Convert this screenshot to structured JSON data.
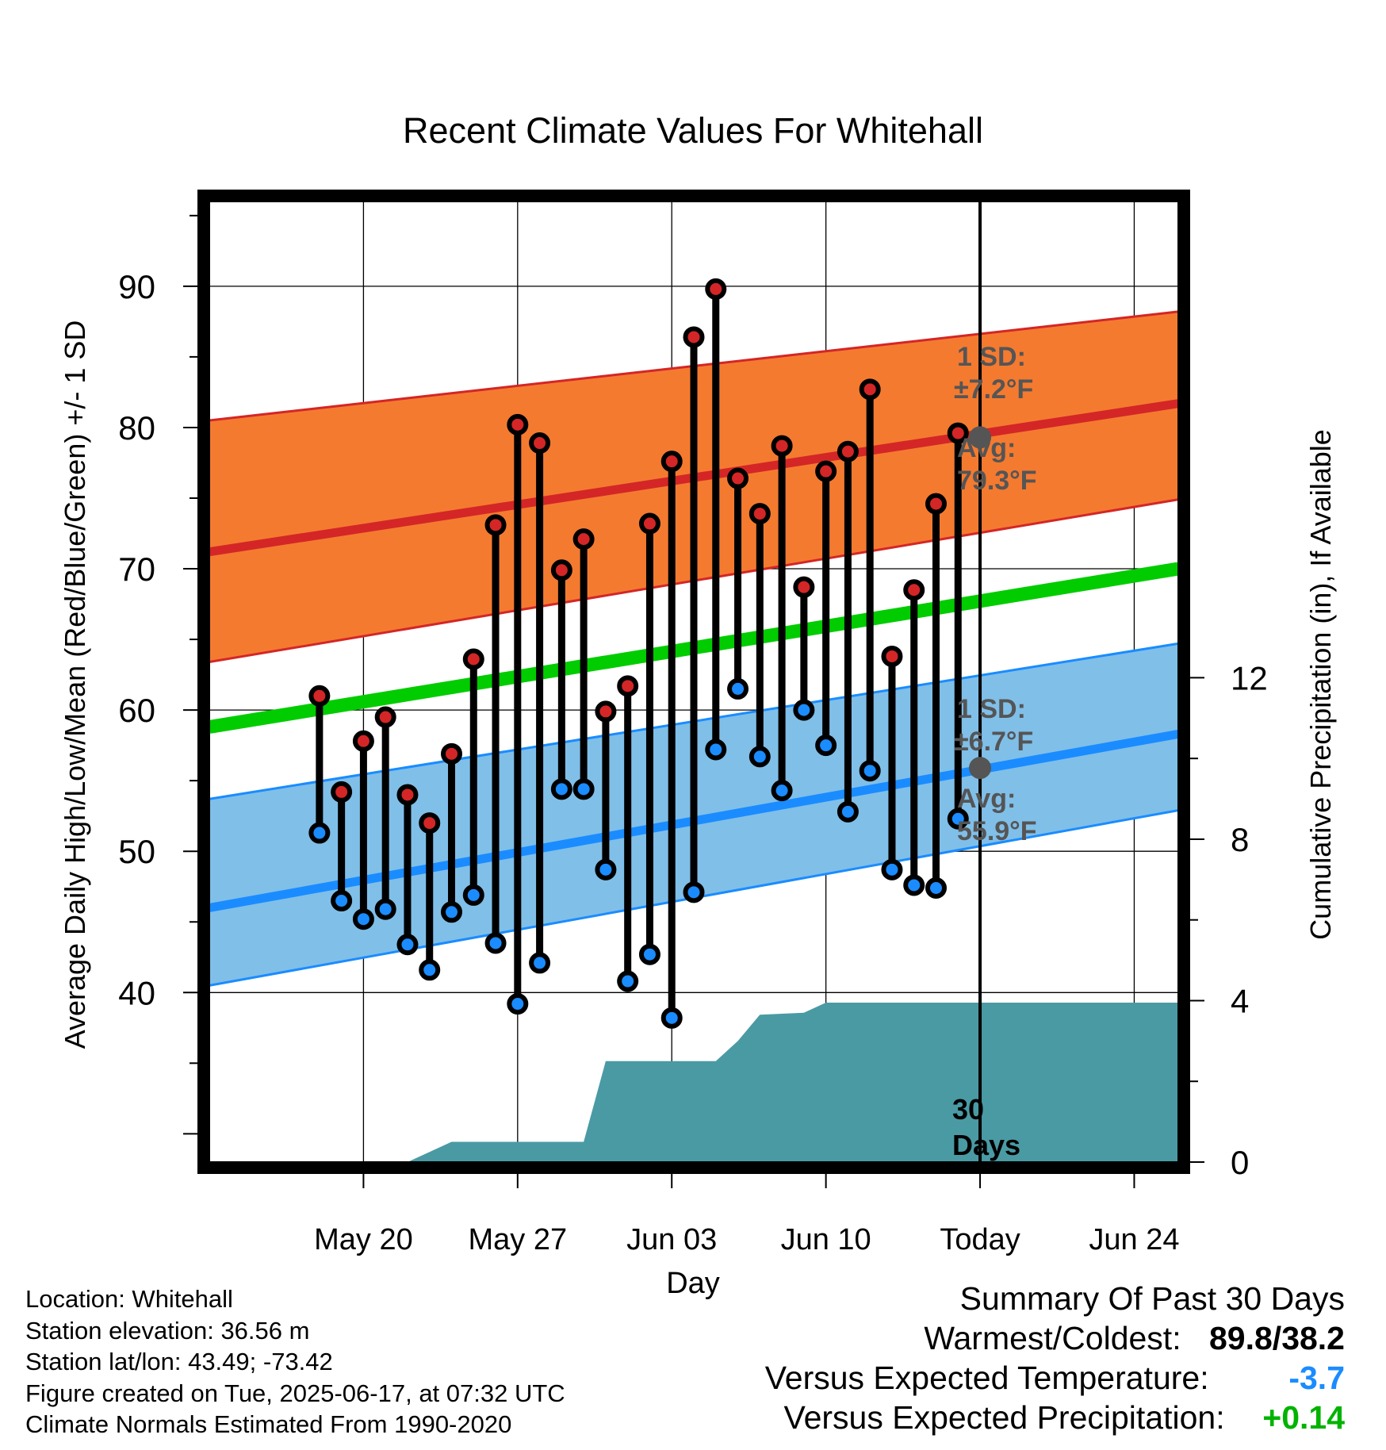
{
  "chart_data": {
    "type": "line",
    "title": "Recent Climate Values For Whitehall",
    "xlabel": "Day",
    "ylabel": "Average Daily High/Low/Mean (Red/Blue/Green) +/- 1 SD",
    "y2label": "Cumulative Precipitation (in), If Available",
    "x_day_range": [
      -35,
      9
    ],
    "ylim": [
      28,
      96
    ],
    "y2lim": [
      0,
      23.8
    ],
    "x_ticks": [
      {
        "day": -28,
        "label": "May 20"
      },
      {
        "day": -21,
        "label": "May 27"
      },
      {
        "day": -14,
        "label": "Jun 03"
      },
      {
        "day": -7,
        "label": "Jun 10"
      },
      {
        "day": 0,
        "label": "Today"
      },
      {
        "day": 7,
        "label": "Jun 24"
      }
    ],
    "y_ticks": [
      40,
      50,
      60,
      70,
      80,
      90
    ],
    "y2_ticks": [
      0,
      4,
      8,
      12
    ],
    "grid": true,
    "normals": {
      "high_avg": [
        71.2,
        81.7
      ],
      "high_sd_upper": [
        80.5,
        88.2
      ],
      "high_sd_lower": [
        63.4,
        74.9
      ],
      "low_avg": [
        46.0,
        58.3
      ],
      "low_sd_upper": [
        53.7,
        64.7
      ],
      "low_sd_lower": [
        40.5,
        52.9
      ],
      "mean_avg": [
        58.8,
        70.0
      ],
      "colors": {
        "high": "#d42626",
        "high_band": "#f47a30",
        "low": "#1a8cff",
        "low_band": "#80bfe8",
        "mean": "#00cc00",
        "precip": "#4a9aa4"
      }
    },
    "observations": [
      {
        "day": -30,
        "high": 61.0,
        "low": 51.3
      },
      {
        "day": -29,
        "high": 54.2,
        "low": 46.5
      },
      {
        "day": -28,
        "high": 57.8,
        "low": 45.2
      },
      {
        "day": -27,
        "high": 59.5,
        "low": 45.9
      },
      {
        "day": -26,
        "high": 54.0,
        "low": 43.4
      },
      {
        "day": -25,
        "high": 52.0,
        "low": 41.6
      },
      {
        "day": -24,
        "high": 56.9,
        "low": 45.7
      },
      {
        "day": -23,
        "high": 63.6,
        "low": 46.9
      },
      {
        "day": -22,
        "high": 73.1,
        "low": 43.5
      },
      {
        "day": -21,
        "high": 80.2,
        "low": 39.2
      },
      {
        "day": -20,
        "high": 78.9,
        "low": 42.1
      },
      {
        "day": -19,
        "high": 69.9,
        "low": 54.4
      },
      {
        "day": -18,
        "high": 72.1,
        "low": 54.4
      },
      {
        "day": -17,
        "high": 59.9,
        "low": 48.7
      },
      {
        "day": -16,
        "high": 61.7,
        "low": 40.8
      },
      {
        "day": -15,
        "high": 73.2,
        "low": 42.7
      },
      {
        "day": -14,
        "high": 77.6,
        "low": 38.2
      },
      {
        "day": -13,
        "high": 86.4,
        "low": 47.1
      },
      {
        "day": -12,
        "high": 89.8,
        "low": 57.2
      },
      {
        "day": -11,
        "high": 76.4,
        "low": 61.5
      },
      {
        "day": -10,
        "high": 73.9,
        "low": 56.7
      },
      {
        "day": -9,
        "high": 78.7,
        "low": 54.3
      },
      {
        "day": -8,
        "high": 68.7,
        "low": 60.0
      },
      {
        "day": -7,
        "high": 76.9,
        "low": 57.5
      },
      {
        "day": -6,
        "high": 78.3,
        "low": 52.8
      },
      {
        "day": -5,
        "high": 82.7,
        "low": 55.7
      },
      {
        "day": -4,
        "high": 63.8,
        "low": 48.7
      },
      {
        "day": -3,
        "high": 68.5,
        "low": 47.6
      },
      {
        "day": -2,
        "high": 74.6,
        "low": 47.4
      },
      {
        "day": -1,
        "high": 79.6,
        "low": 52.3
      }
    ],
    "precip_cumulative": [
      {
        "day": -35,
        "in": 0
      },
      {
        "day": -26,
        "in": 0
      },
      {
        "day": -24,
        "in": 0.5
      },
      {
        "day": -18,
        "in": 0.5
      },
      {
        "day": -17,
        "in": 2.5
      },
      {
        "day": -12,
        "in": 2.5
      },
      {
        "day": -11,
        "in": 3.0
      },
      {
        "day": -10,
        "in": 3.65
      },
      {
        "day": -8,
        "in": 3.7
      },
      {
        "day": -7,
        "in": 3.95
      },
      {
        "day": 9,
        "in": 3.95
      }
    ],
    "today_markers": {
      "high_avg": 79.3,
      "low_avg": 55.9
    },
    "annotations": {
      "high_sd_label": "1 SD:",
      "high_sd_value": "±7.2°F",
      "high_avg_label": "Avg:",
      "high_avg_value": "79.3°F",
      "low_sd_label": "1 SD:",
      "low_sd_value": "±6.7°F",
      "low_avg_label": "Avg:",
      "low_avg_value": "55.9°F",
      "days_num": "30",
      "days_word": "Days"
    }
  },
  "info": {
    "location": "Location: Whitehall",
    "elevation": "Station elevation: 36.56 m",
    "latlon": "Station lat/lon: 43.49; -73.42",
    "created": "Figure created on Tue, 2025-06-17, at 07:32 UTC",
    "normals": "Climate Normals Estimated From 1990-2020"
  },
  "summary": {
    "title": "Summary Of Past 30 Days",
    "warmest_label": "Warmest/Coldest:",
    "warmest_value": "89.8/38.2",
    "temp_label": "Versus Expected Temperature:",
    "temp_value": "-3.7",
    "temp_color": "#1a8cff",
    "precip_label": "Versus Expected Precipitation:",
    "precip_value": "+0.14",
    "precip_color": "#00b300"
  }
}
